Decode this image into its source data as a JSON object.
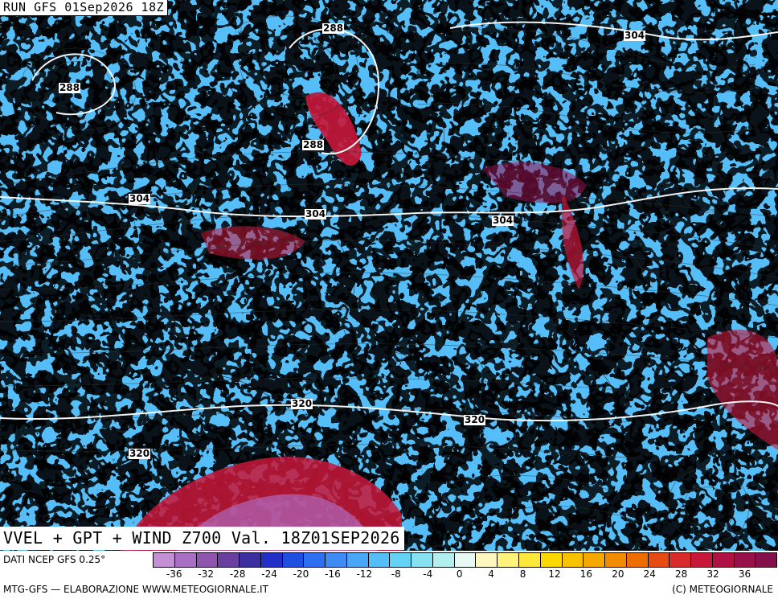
{
  "header": {
    "run_label": "RUN GFS 01Sep2026 18Z"
  },
  "map_title": "VVEL + GPT + WIND Z700 Val. 18Z01SEP2026",
  "isolines": [
    {
      "text": "288"
    },
    {
      "text": "288"
    },
    {
      "text": "288"
    },
    {
      "text": "304"
    },
    {
      "text": "304"
    },
    {
      "text": "304"
    },
    {
      "text": "304"
    },
    {
      "text": "320"
    },
    {
      "text": "320"
    },
    {
      "text": "320"
    }
  ],
  "footer": {
    "data_source": "DATI NCEP GFS 0.25°",
    "credit_left": "MTG-GFS — ELABORAZIONE WWW.METEOGIORNALE.IT",
    "credit_right": "(C) METEOGIORNALE"
  },
  "colorbar": {
    "colors": [
      "#c58fd6",
      "#a96fc4",
      "#8e54b0",
      "#6b3fa0",
      "#3b2fa0",
      "#2230c8",
      "#1f4fe0",
      "#2e6ff2",
      "#3d8cf5",
      "#4aa6f7",
      "#55bdf8",
      "#63d2f5",
      "#86e2f0",
      "#b3eef0",
      "#e8f8f4",
      "#fff7c0",
      "#fff27a",
      "#ffe83c",
      "#fbd800",
      "#f7c300",
      "#f4a800",
      "#f18c00",
      "#ee6d00",
      "#e84a14",
      "#d92b2b",
      "#c8173a",
      "#b01044",
      "#98104a",
      "#83104c"
    ],
    "tick_labels": [
      "-36",
      "-32",
      "-28",
      "-24",
      "-20",
      "-16",
      "-12",
      "-8",
      "-4",
      "0",
      "4",
      "8",
      "12",
      "16",
      "20",
      "24",
      "28",
      "32",
      "36"
    ]
  }
}
